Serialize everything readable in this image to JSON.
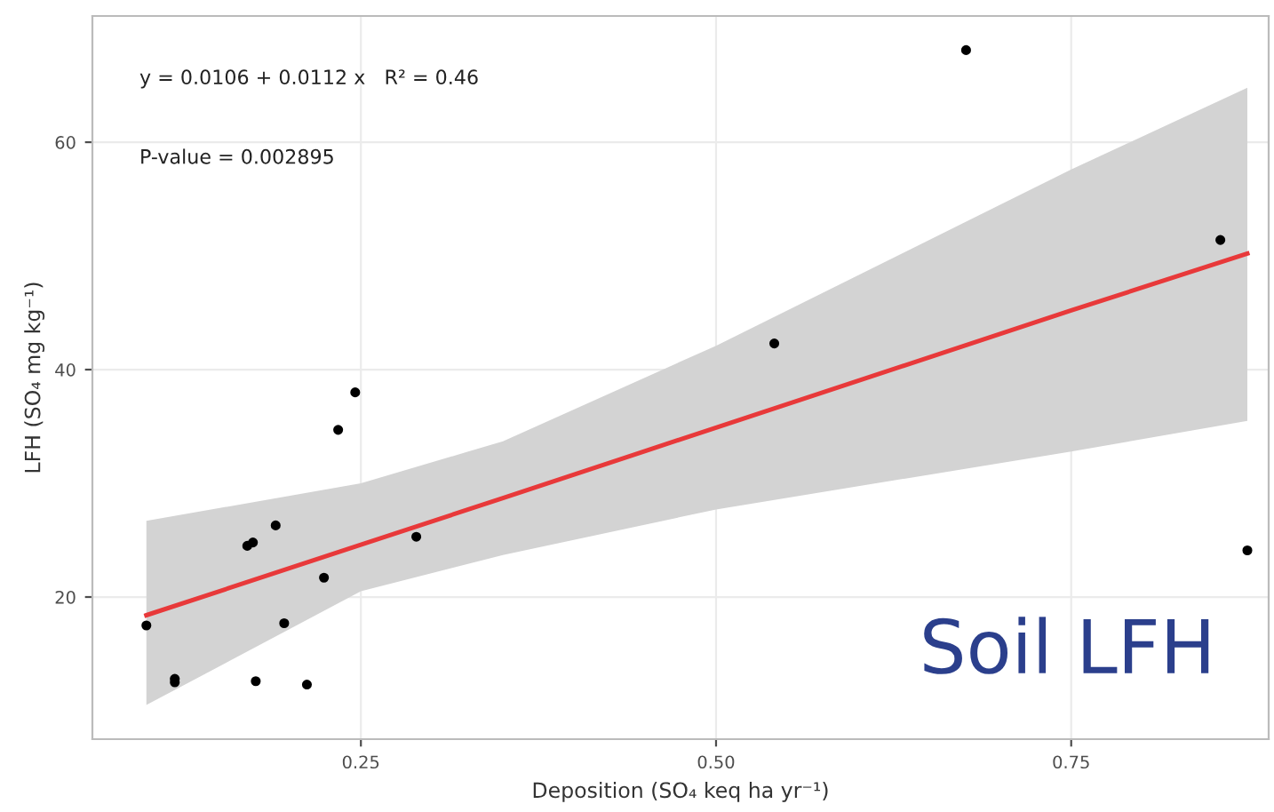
{
  "chart_data": {
    "type": "scatter",
    "xlabel": "Deposition (SO₄ keq ha yr⁻¹)",
    "ylabel": "LFH (SO₄ mg kg⁻¹)",
    "series": [
      {
        "color": "#000000",
        "marker": "circle",
        "x": [
          0.099,
          0.119,
          0.119,
          0.17,
          0.174,
          0.19,
          0.176,
          0.196,
          0.212,
          0.224,
          0.234,
          0.246,
          0.289,
          0.541,
          0.676,
          0.855,
          0.874
        ],
        "values": [
          17.5,
          12.8,
          12.5,
          24.5,
          24.8,
          26.3,
          12.6,
          17.7,
          12.3,
          21.7,
          34.7,
          38.0,
          25.3,
          42.3,
          68.1,
          51.4,
          24.1
        ]
      },
      {
        "type": "line",
        "color": "#e8393a",
        "x": [
          0.099,
          0.25,
          0.35,
          0.5,
          0.75,
          0.874
        ],
        "values": [
          18.4,
          24.6,
          28.7,
          34.9,
          45.2,
          50.2
        ],
        "lower": [
          10.5,
          20.5,
          23.7,
          27.7,
          32.8,
          35.5
        ],
        "upper": [
          26.7,
          30.0,
          33.7,
          42.1,
          57.6,
          64.8
        ]
      }
    ],
    "xlim": [
      0.061,
      0.889
    ],
    "ylim": [
      7.5,
      71.1
    ],
    "xticks": [
      {
        "value": 0.25,
        "label": "0.25"
      },
      {
        "value": 0.5,
        "label": "0.50"
      },
      {
        "value": 0.75,
        "label": "0.75"
      }
    ],
    "yticks": [
      20,
      40,
      60
    ],
    "grid": true,
    "line_style": "solid",
    "annotations": [
      "y = 0.0106 + 0.0112 x   R² = 0.46",
      "P-value = 0.002895",
      "Soil LFH"
    ]
  }
}
